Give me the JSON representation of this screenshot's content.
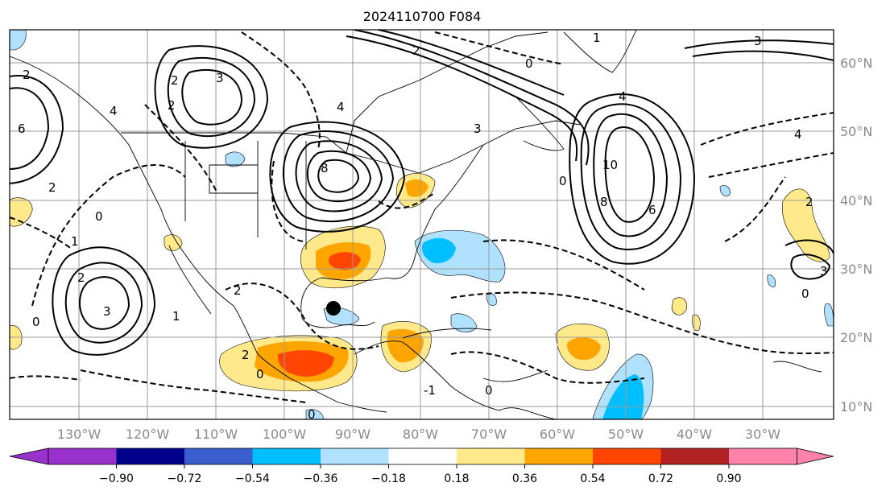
{
  "title": "2024110700 F084",
  "map": {
    "lon_ticks": [
      "130°W",
      "120°W",
      "110°W",
      "100°W",
      "90°W",
      "80°W",
      "70°W",
      "60°W",
      "50°W",
      "40°W",
      "30°W"
    ],
    "lat_ticks": [
      "60°N",
      "50°N",
      "40°N",
      "30°N",
      "20°N",
      "10°N"
    ],
    "contour_labels": [
      "2",
      "3",
      "2",
      "4",
      "4",
      "3",
      "2",
      "8",
      "10",
      "8",
      "6",
      "4",
      "3",
      "0",
      "1",
      "2",
      "3",
      "0",
      "1",
      "2",
      "2",
      "0",
      "-1",
      "0",
      "3",
      "2",
      "6",
      "0",
      "2",
      "0",
      "1",
      "0",
      "0",
      "4",
      "2"
    ],
    "marker": "storm-center-dot"
  },
  "colorbar": {
    "ticks": [
      "−0.90",
      "−0.72",
      "−0.54",
      "−0.36",
      "−0.18",
      "0.18",
      "0.36",
      "0.54",
      "0.72",
      "0.90"
    ],
    "colors": [
      "#9932cc",
      "#00008b",
      "#3a5fcd",
      "#00bfff",
      "#b0e2ff",
      "#ffffff",
      "#ffe98a",
      "#ffa500",
      "#ff4500",
      "#b22222",
      "#ff82ab"
    ],
    "extend": "both"
  }
}
